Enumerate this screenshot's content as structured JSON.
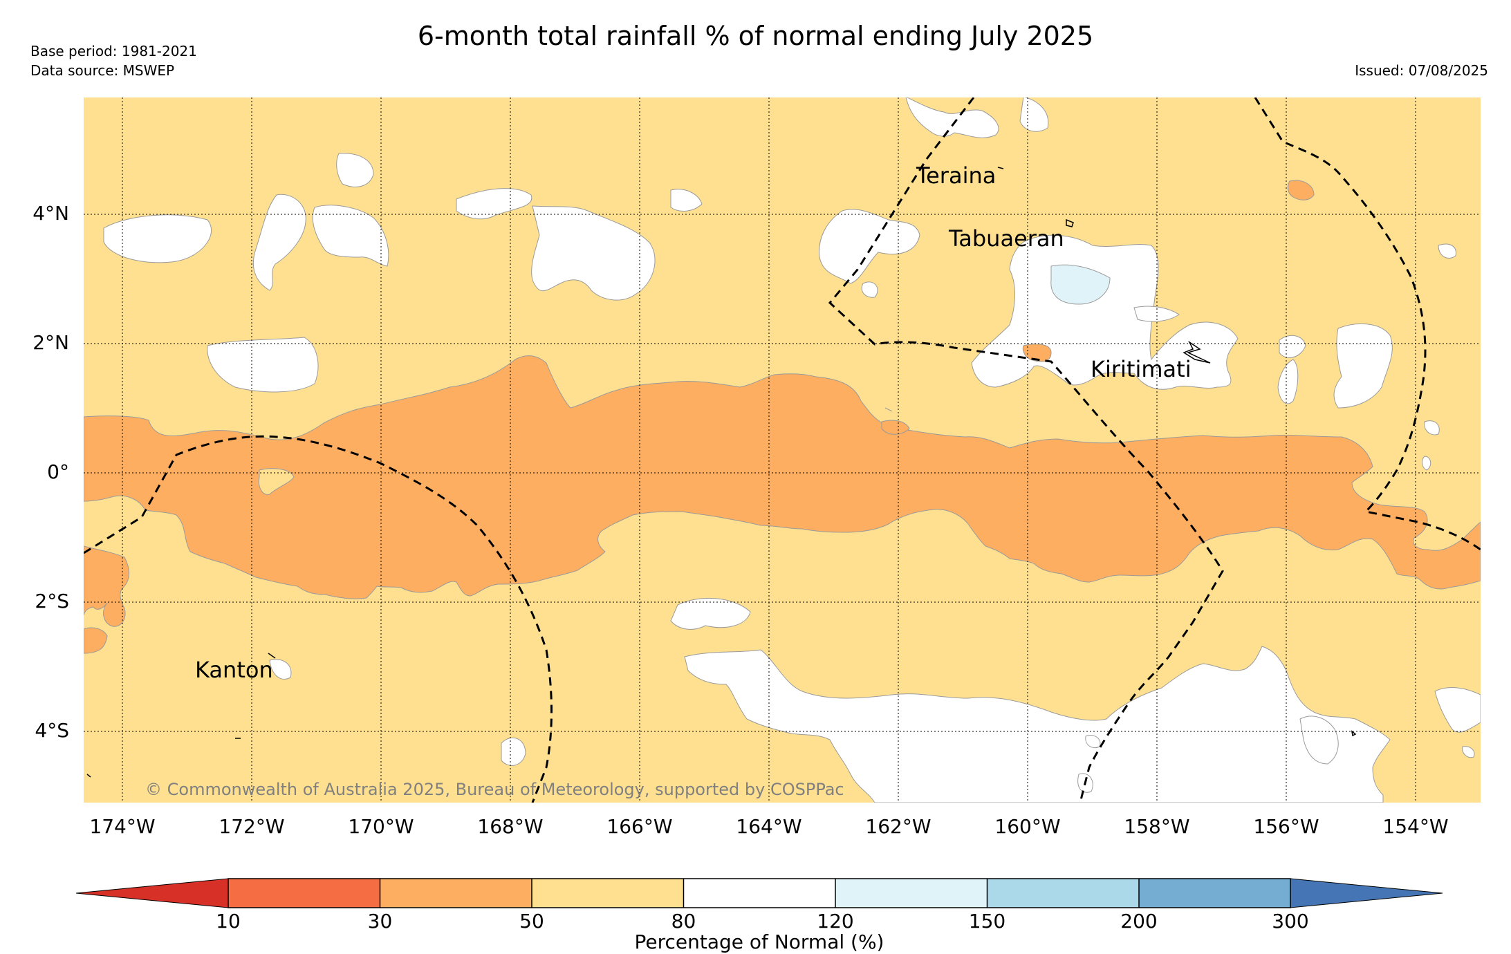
{
  "title": "6-month total rainfall % of normal ending July 2025",
  "meta": {
    "base_period": "Base period: 1981-2021",
    "data_source": "Data source: MSWEP",
    "issued": "Issued: 07/08/2025"
  },
  "map": {
    "lat_labels": [
      "4°N",
      "2°N",
      "0°",
      "2°S",
      "4°S"
    ],
    "lon_labels": [
      "174°W",
      "172°W",
      "170°W",
      "168°W",
      "166°W",
      "164°W",
      "162°W",
      "160°W",
      "158°W",
      "156°W",
      "154°W"
    ],
    "places": [
      "Teraina",
      "Tabuaeran",
      "Kiritimati",
      "Kanton"
    ],
    "copyright": "© Commonwealth of Australia 2025, Bureau of Meteorology, supported by COSPPac"
  },
  "colorbar": {
    "ticks": [
      "10",
      "30",
      "50",
      "80",
      "120",
      "150",
      "200",
      "300"
    ],
    "label": "Percentage of Normal (%)",
    "colors": {
      "below_10": "#d73027",
      "10_30": "#f46d43",
      "30_50": "#fdae61",
      "50_80": "#fee090",
      "80_120": "#ffffff",
      "120_150": "#e0f3f8",
      "150_200": "#abd9e9",
      "200_300": "#74add1",
      "above_300": "#4575b4"
    }
  }
}
